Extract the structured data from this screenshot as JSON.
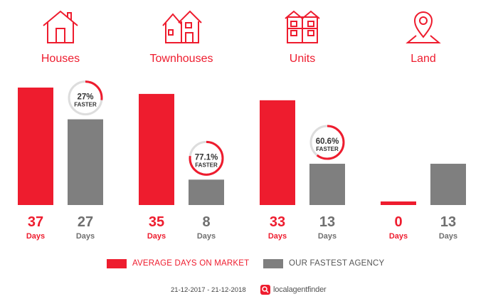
{
  "colors": {
    "accent": "#ee1c2e",
    "agency": "#7f7f7f",
    "ring_track": "#dddddd"
  },
  "categories": [
    {
      "label": "Houses",
      "icon": "house-icon"
    },
    {
      "label": "Townhouses",
      "icon": "townhouses-icon"
    },
    {
      "label": "Units",
      "icon": "units-icon"
    },
    {
      "label": "Land",
      "icon": "land-pin-icon"
    }
  ],
  "chart_data": {
    "type": "bar",
    "categories": [
      "Houses",
      "Townhouses",
      "Units",
      "Land"
    ],
    "series": [
      {
        "name": "AVERAGE DAYS ON MARKET",
        "values": [
          37,
          35,
          33,
          0
        ],
        "color": "#ee1c2e"
      },
      {
        "name": "OUR FASTEST AGENCY",
        "values": [
          27,
          8,
          13,
          13
        ],
        "color": "#7f7f7f"
      }
    ],
    "value_unit": "Days",
    "value_labels": {
      "average": [
        "37",
        "35",
        "33",
        "0"
      ],
      "agency": [
        "27",
        "8",
        "13",
        "13"
      ]
    },
    "faster_badges": [
      {
        "category": "Houses",
        "text": "27%",
        "fraction": 0.27
      },
      {
        "category": "Townhouses",
        "text": "77.1%",
        "fraction": 0.771
      },
      {
        "category": "Units",
        "text": "60.6%",
        "fraction": 0.606
      },
      null
    ],
    "faster_label": "FASTER",
    "ylim": [
      0,
      37
    ]
  },
  "legend": {
    "average_label": "AVERAGE DAYS ON MARKET",
    "agency_label": "OUR FASTEST AGENCY"
  },
  "footer": {
    "date_range": "21-12-2017 - 21-12-2018",
    "brand": "localagentfinder"
  }
}
